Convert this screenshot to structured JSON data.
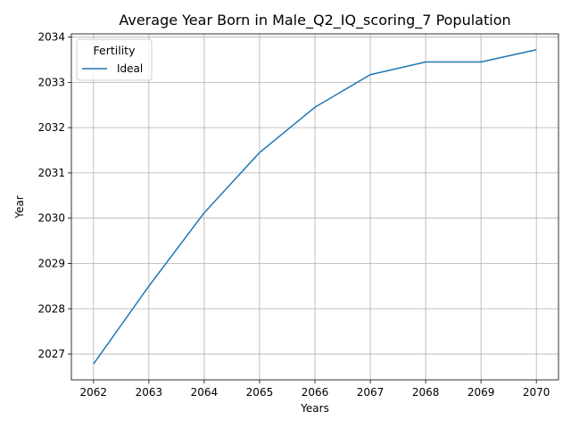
{
  "chart_data": {
    "type": "line",
    "title": "Average Year Born in Male_Q2_IQ_scoring_7 Population",
    "xlabel": "Years",
    "ylabel": "Year",
    "x": [
      2062,
      2063,
      2064,
      2065,
      2066,
      2067,
      2068,
      2069,
      2070
    ],
    "series": [
      {
        "name": "Ideal",
        "color": "#1f77b4",
        "values": [
          2026.78,
          2028.5,
          2030.12,
          2031.45,
          2032.45,
          2033.17,
          2033.45,
          2033.45,
          2033.72
        ]
      }
    ],
    "xlim": [
      2061.6,
      2070.4
    ],
    "ylim": [
      2026.43,
      2034.07
    ],
    "xticks": [
      "2062",
      "2063",
      "2064",
      "2065",
      "2066",
      "2067",
      "2068",
      "2069",
      "2070"
    ],
    "yticks": [
      "2027",
      "2028",
      "2029",
      "2030",
      "2031",
      "2032",
      "2033",
      "2034"
    ],
    "grid": true,
    "legend": {
      "title": "Fertility",
      "position": "top-left"
    }
  }
}
